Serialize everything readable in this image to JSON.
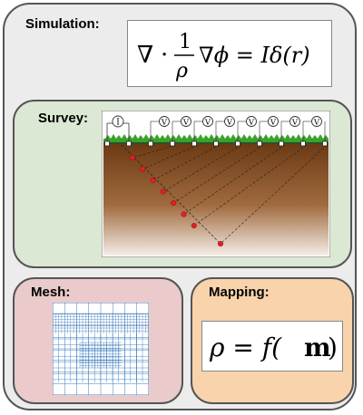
{
  "simulation": {
    "title": "Simulation:",
    "equation": {
      "nabla": "∇",
      "dot": "·",
      "num": "1",
      "den": "ρ",
      "rhs": "∇ϕ = Iδ(r)"
    }
  },
  "survey": {
    "title": "Survey:",
    "source_label": "I",
    "receiver_label": "V"
  },
  "mesh": {
    "title": "Mesh:"
  },
  "mapping": {
    "title": "Mapping:",
    "equation": {
      "lhs": "ρ = f(",
      "arg": "m",
      "close": ")"
    }
  },
  "colors": {
    "outline": "#555555",
    "background": "#ececec",
    "survey_bg": "#dbe8d3",
    "mesh_bg": "#eacaca",
    "mapping_bg": "#f8d3ab",
    "mesh_line": "#3a7bbd",
    "grass": "#3aa12a",
    "node": "#e0202a"
  }
}
